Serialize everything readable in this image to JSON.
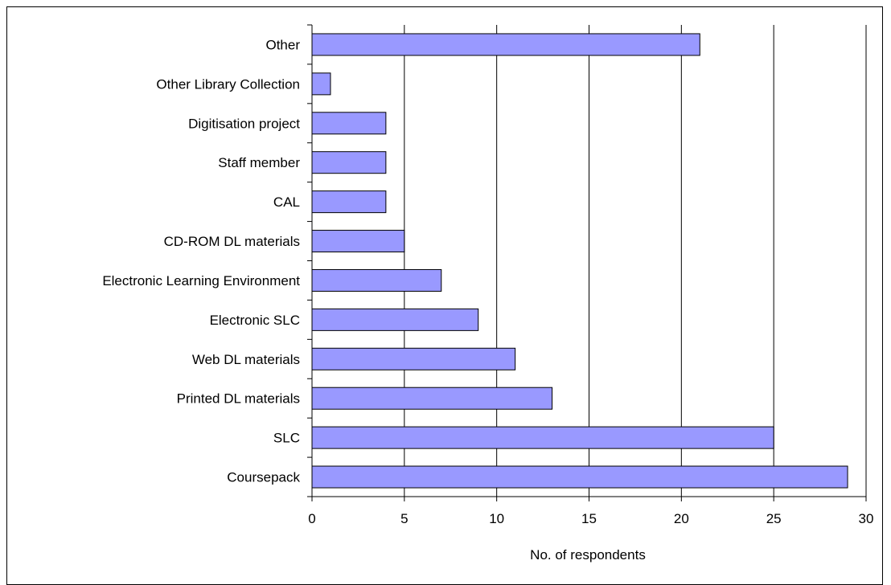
{
  "chart_data": {
    "type": "bar",
    "orientation": "horizontal",
    "categories": [
      "Other",
      "Other Library Collection",
      "Digitisation project",
      "Staff member",
      "CAL",
      "CD-ROM DL materials",
      "Electronic Learning Environment",
      "Electronic SLC",
      "Web DL materials",
      "Printed DL materials",
      "SLC",
      "Coursepack"
    ],
    "values": [
      21,
      1,
      4,
      4,
      4,
      5,
      7,
      9,
      11,
      13,
      25,
      29
    ],
    "xlabel": "No. of respondents",
    "ylabel": "",
    "xlim": [
      0,
      30
    ],
    "xticks": [
      0,
      5,
      10,
      15,
      20,
      25,
      30
    ],
    "grid": "vertical",
    "legend": "none",
    "bar_color": "#9999ff",
    "bar_edge_color": "#000000"
  }
}
